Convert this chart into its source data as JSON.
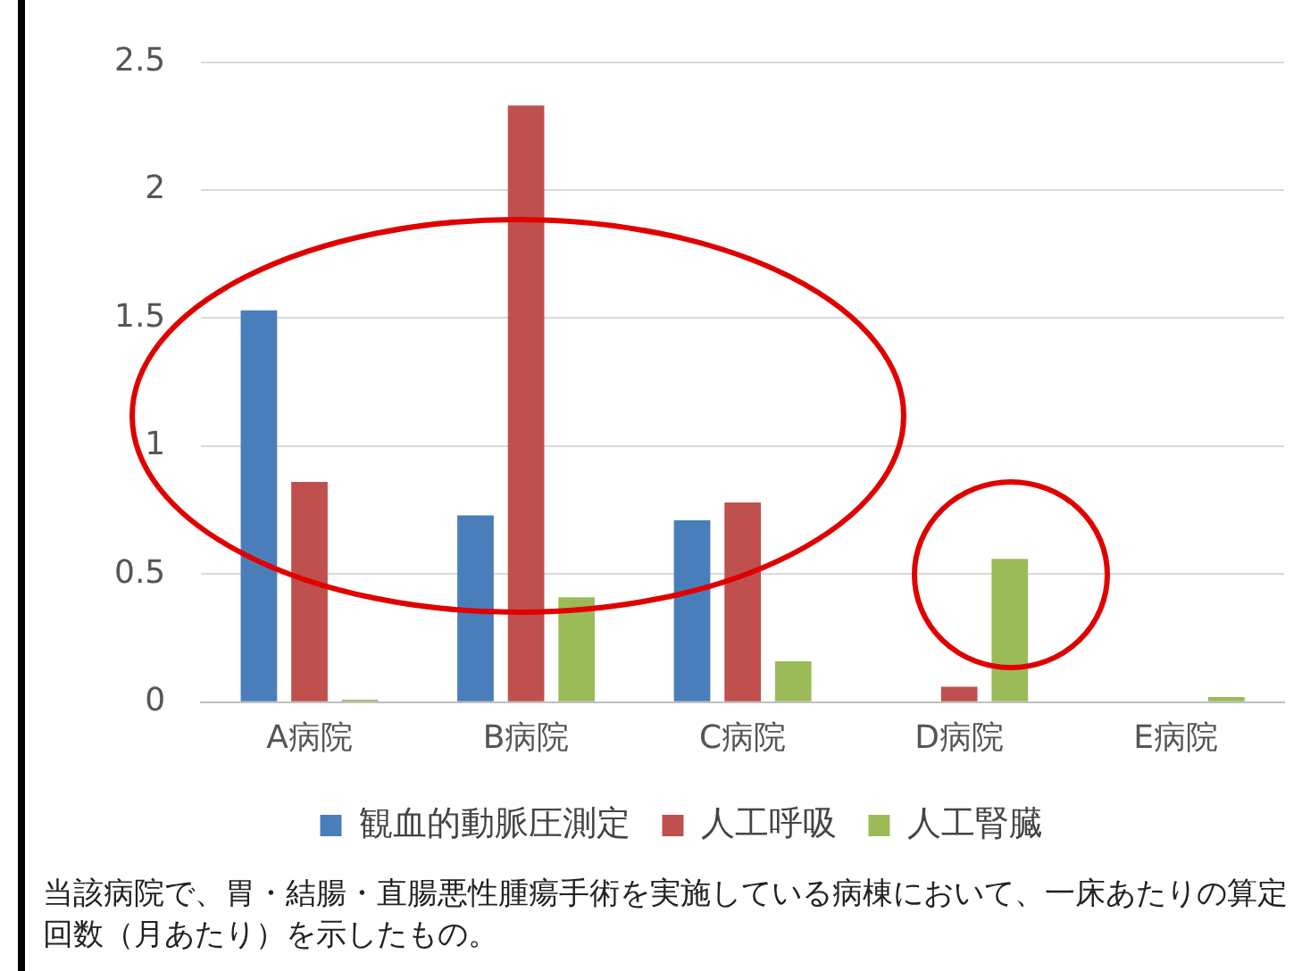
{
  "chart_data": {
    "type": "bar",
    "categories": [
      "A病院",
      "B病院",
      "C病院",
      "D病院",
      "E病院"
    ],
    "series": [
      {
        "name": "観血的動脈圧測定",
        "color": "#4a7ebb",
        "values": [
          1.53,
          0.73,
          0.71,
          0,
          0
        ]
      },
      {
        "name": "人工呼吸",
        "color": "#c0504d",
        "values": [
          0.86,
          2.33,
          0.78,
          0.06,
          0
        ]
      },
      {
        "name": "人工腎臓",
        "color": "#9bbb59",
        "values": [
          0.01,
          0.41,
          0.16,
          0.56,
          0.02
        ]
      }
    ],
    "ylim": [
      0,
      2.5
    ],
    "yticks": [
      0,
      0.5,
      1,
      1.5,
      2,
      2.5
    ],
    "grid": "y",
    "legend": "bottom",
    "annotations": [
      "当該病院で、胃・結腸・直腸悪性腫瘍手術を実施している病棟において、一床あたりの算定回数（月あたり）を示したもの。"
    ]
  }
}
